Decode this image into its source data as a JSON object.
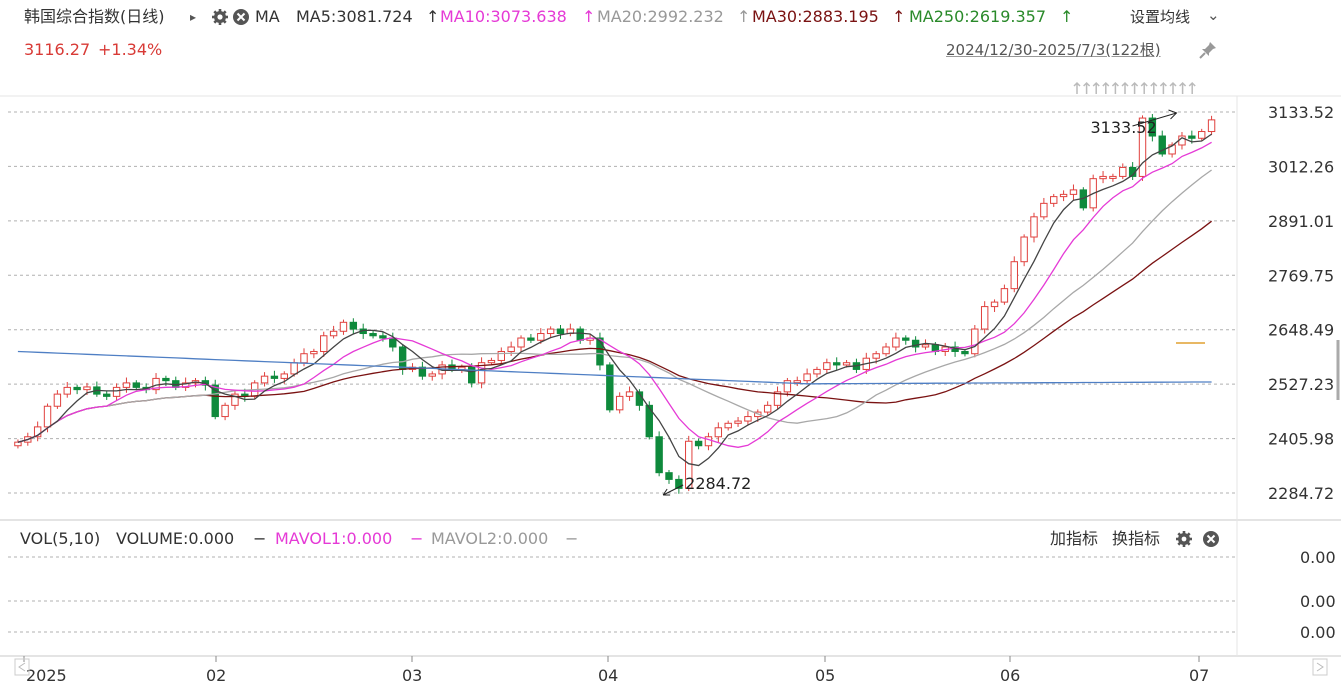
{
  "header": {
    "title": "韩国综合指数(日线)",
    "expand_glyph": "▸",
    "settings_icon": "gear-icon",
    "close_icon": "close-icon",
    "ma_label": "MA",
    "ma5": "MA5:3081.724",
    "ma10": "MA10:3073.638",
    "ma20": "MA20:2992.232",
    "ma30": "MA30:2883.195",
    "ma250": "MA250:2619.357",
    "up_arrow": "↑",
    "set_ma_label": "设置均线",
    "chevron": "⌄"
  },
  "quote": {
    "price": "3116.27",
    "change": "+1.34%"
  },
  "range": {
    "label": "2024/12/30-2025/7/3(122根)"
  },
  "colors": {
    "up": "#e0403d",
    "down": "#0f8a3c",
    "ma5": "#444444",
    "ma10": "#e53ad6",
    "ma20": "#a8a8a8",
    "ma30": "#7a1212",
    "ma250": "#4f7fc4",
    "text_red": "#d83a36"
  },
  "price_axis": {
    "ticks": [
      "3133.52",
      "3012.26",
      "2891.01",
      "2769.75",
      "2648.49",
      "2527.23",
      "2405.98",
      "2284.72"
    ]
  },
  "annotations": {
    "high": "3133.52",
    "low": "2284.72"
  },
  "volume": {
    "title": "VOL(5,10)",
    "volume": "VOLUME:0.000",
    "mavol1": "MAVOL1:0.000",
    "mavol2": "MAVOL2:0.000",
    "dash": "−",
    "add_indicator": "加指标",
    "switch_indicator": "换指标",
    "axis_ticks": [
      "0.00",
      "0.00",
      "0.00"
    ]
  },
  "time_axis": {
    "labels": [
      "2025",
      "02",
      "03",
      "04",
      "05",
      "06",
      "07"
    ]
  },
  "chart_data": {
    "type": "candlestick",
    "y_range": [
      2284.72,
      3133.52
    ],
    "candles_close_approx": [
      2398,
      2410,
      2432,
      2478,
      2505,
      2520,
      2515,
      2521,
      2505,
      2500,
      2520,
      2530,
      2520,
      2515,
      2540,
      2535,
      2520,
      2530,
      2535,
      2525,
      2455,
      2480,
      2505,
      2500,
      2530,
      2545,
      2540,
      2550,
      2575,
      2595,
      2600,
      2635,
      2645,
      2665,
      2650,
      2640,
      2635,
      2630,
      2610,
      2560,
      2565,
      2545,
      2550,
      2570,
      2560,
      2565,
      2530,
      2575,
      2580,
      2600,
      2610,
      2630,
      2625,
      2640,
      2650,
      2640,
      2650,
      2625,
      2630,
      2570,
      2470,
      2500,
      2510,
      2480,
      2410,
      2330,
      2315,
      2295,
      2400,
      2390,
      2410,
      2430,
      2440,
      2445,
      2455,
      2465,
      2480,
      2510,
      2535,
      2535,
      2550,
      2560,
      2575,
      2570,
      2575,
      2560,
      2585,
      2595,
      2610,
      2630,
      2625,
      2610,
      2615,
      2600,
      2610,
      2600,
      2595,
      2650,
      2700,
      2710,
      2740,
      2800,
      2855,
      2900,
      2930,
      2945,
      2950,
      2960,
      2920,
      2985,
      2990,
      2990,
      3010,
      2990,
      3120,
      3080,
      3040,
      3060,
      3080,
      3075,
      3090,
      3116
    ],
    "series": [
      {
        "name": "MA5",
        "last": 3081.724
      },
      {
        "name": "MA10",
        "last": 3073.638
      },
      {
        "name": "MA20",
        "last": 2992.232
      },
      {
        "name": "MA30",
        "last": 2883.195
      },
      {
        "name": "MA250",
        "last": 2619.357
      }
    ]
  }
}
